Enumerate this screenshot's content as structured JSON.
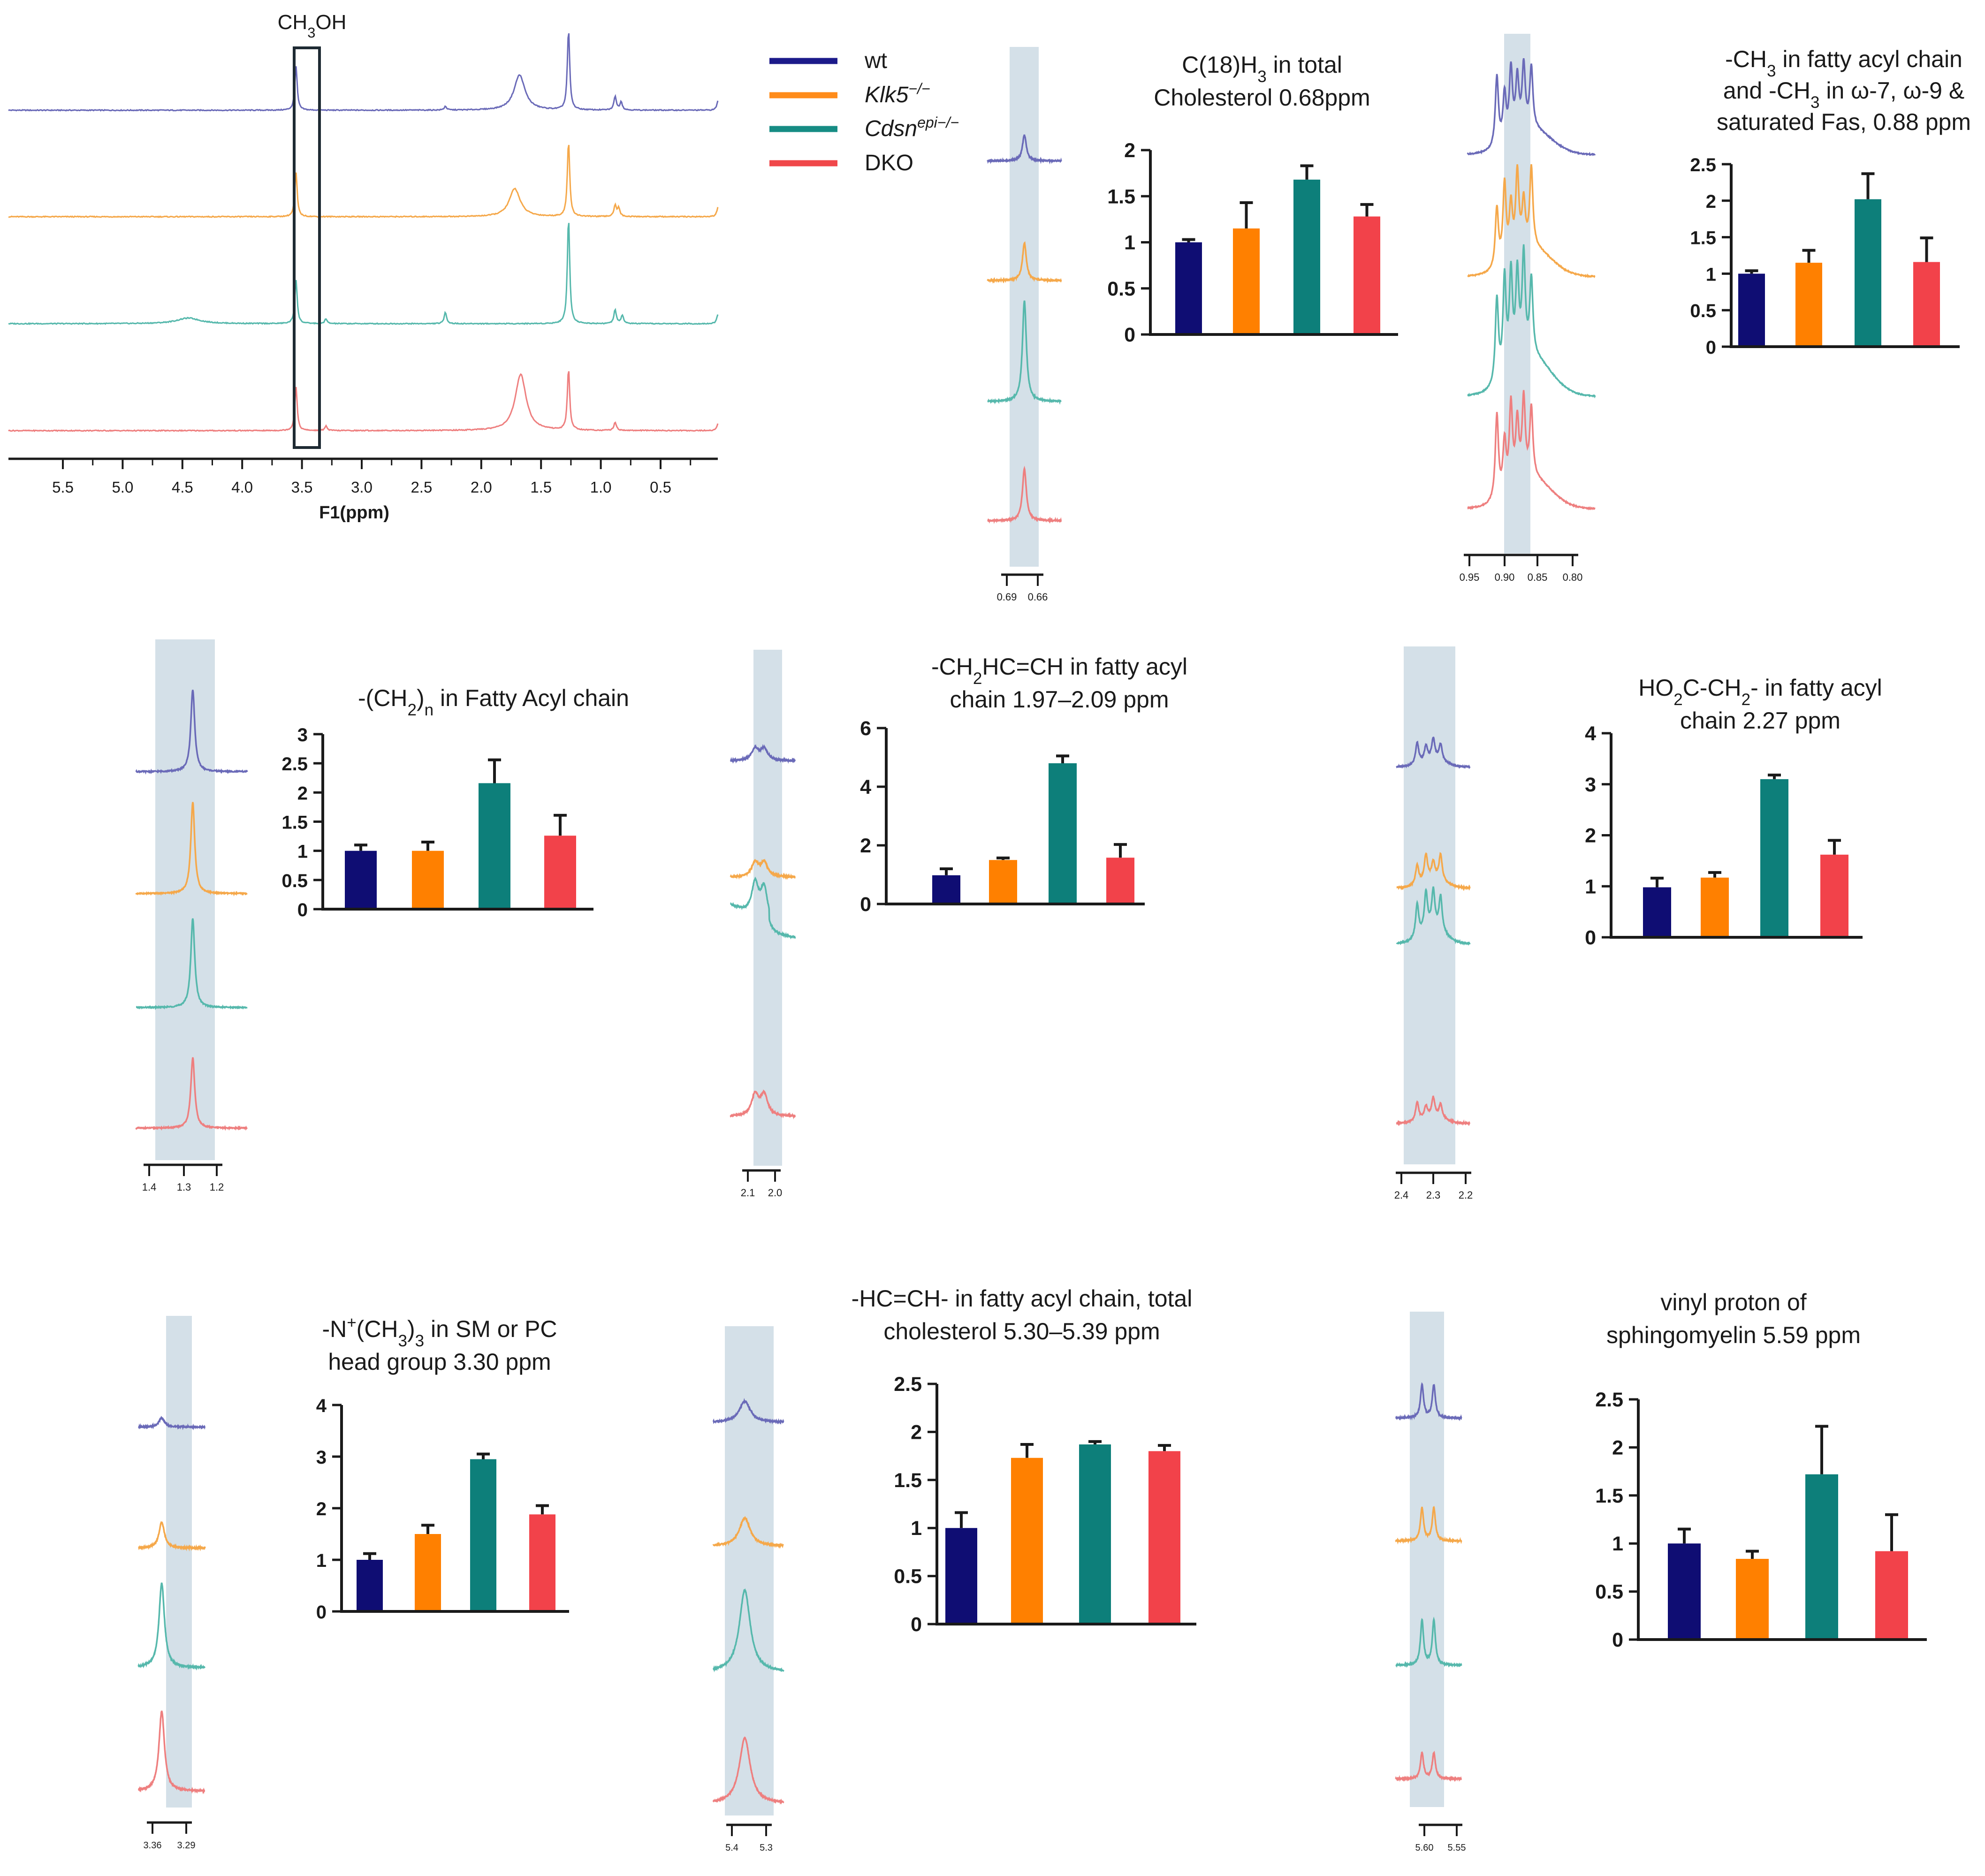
{
  "legend": [
    {
      "label": "wt",
      "color": "#1c1a8a"
    },
    {
      "label": "Klk5",
      "sup": "−/−",
      "italic": true,
      "color": "#ff8c1a"
    },
    {
      "label": "Cdsn",
      "sup": "epi−/−",
      "italic": true,
      "color": "#168c84"
    },
    {
      "label": "DKO",
      "color": "#f0474a"
    }
  ],
  "spectrum_colors": [
    "#6a6ab8",
    "#f5a84a",
    "#56b8ac",
    "#ee7f7f"
  ],
  "main_spectrum": {
    "box_label": "CH3OH",
    "axis_label": "F1(ppm)",
    "ticks": [
      "5.5",
      "5.0",
      "4.5",
      "4.0",
      "3.5",
      "3.0",
      "2.5",
      "2.0",
      "1.5",
      "1.0",
      "0.5"
    ]
  },
  "insets": [
    {
      "id": "c18",
      "ticks": [
        "0.69",
        "0.66"
      ]
    },
    {
      "id": "ch3",
      "ticks": [
        "0.95",
        "0.90",
        "0.85",
        "0.80"
      ]
    },
    {
      "id": "ch2n",
      "ticks": [
        "1.4",
        "1.3",
        "1.2"
      ]
    },
    {
      "id": "allyl",
      "ticks": [
        "2.1",
        "2.0"
      ]
    },
    {
      "id": "ho2c",
      "ticks": [
        "2.4",
        "2.3",
        "2.2"
      ]
    },
    {
      "id": "nch3",
      "ticks": [
        "3.36",
        "3.29"
      ]
    },
    {
      "id": "hcch",
      "ticks": [
        "5.4",
        "5.3"
      ]
    },
    {
      "id": "vinyl",
      "ticks": [
        "5.60",
        "5.55"
      ]
    }
  ],
  "chart_data": [
    {
      "type": "bar",
      "id": "c18",
      "title_lines": [
        "C(18)H3 in total",
        "Cholesterol 0.68ppm"
      ],
      "categories": [
        "wt",
        "Klk5−/−",
        "Cdsnepi−/−",
        "DKO"
      ],
      "values": [
        1.0,
        1.15,
        1.68,
        1.28
      ],
      "errors": [
        0.03,
        0.28,
        0.15,
        0.13
      ],
      "ylim": [
        0,
        2
      ],
      "yticks": [
        "0",
        "0.5",
        "1",
        "1.5",
        "2"
      ]
    },
    {
      "type": "bar",
      "id": "ch3",
      "title_lines": [
        "-CH3 in fatty acyl chain",
        "and -CH3 in ω-7, ω-9 &",
        "saturated Fas, 0.88 ppm"
      ],
      "categories": [
        "wt",
        "Klk5−/−",
        "Cdsnepi−/−",
        "DKO"
      ],
      "values": [
        1.0,
        1.15,
        2.02,
        1.16
      ],
      "errors": [
        0.04,
        0.17,
        0.35,
        0.33
      ],
      "ylim": [
        0,
        2.5
      ],
      "yticks": [
        "0",
        "0.5",
        "1",
        "1.5",
        "2",
        "2.5"
      ]
    },
    {
      "type": "bar",
      "id": "ch2n",
      "title_lines": [
        "-(CH2)n  in  Fatty  Acyl  chain"
      ],
      "categories": [
        "wt",
        "Klk5−/−",
        "Cdsnepi−/−",
        "DKO"
      ],
      "values": [
        1.0,
        1.0,
        2.16,
        1.26
      ],
      "errors": [
        0.1,
        0.15,
        0.4,
        0.35
      ],
      "ylim": [
        0,
        3
      ],
      "yticks": [
        "0",
        "0.5",
        "1",
        "1.5",
        "2",
        "2.5",
        "3"
      ]
    },
    {
      "type": "bar",
      "id": "allyl",
      "title_lines": [
        "-CH2HC=CH  in fatty acyl",
        "chain 1.97–2.09 ppm"
      ],
      "categories": [
        "wt",
        "Klk5−/−",
        "Cdsnepi−/−",
        "DKO"
      ],
      "values": [
        0.98,
        1.5,
        4.8,
        1.58
      ],
      "errors": [
        0.22,
        0.07,
        0.25,
        0.45
      ],
      "ylim": [
        0,
        6
      ],
      "yticks": [
        "0",
        "2",
        "4",
        "6"
      ]
    },
    {
      "type": "bar",
      "id": "ho2c",
      "title_lines": [
        "HO2C-CH2-   in fatty acyl",
        "chain 2.27 ppm"
      ],
      "categories": [
        "wt",
        "Klk5−/−",
        "Cdsnepi−/−",
        "DKO"
      ],
      "values": [
        0.98,
        1.17,
        3.1,
        1.62
      ],
      "errors": [
        0.18,
        0.1,
        0.08,
        0.28
      ],
      "ylim": [
        0,
        4
      ],
      "yticks": [
        "0",
        "1",
        "2",
        "3",
        "4"
      ]
    },
    {
      "type": "bar",
      "id": "nch3",
      "title_lines": [
        "-N+(CH3)3  in SM or PC",
        "head group 3.30 ppm"
      ],
      "categories": [
        "wt",
        "Klk5−/−",
        "Cdsnepi−/−",
        "DKO"
      ],
      "values": [
        1.0,
        1.5,
        2.95,
        1.88
      ],
      "errors": [
        0.12,
        0.17,
        0.1,
        0.17
      ],
      "ylim": [
        0,
        4
      ],
      "yticks": [
        "0",
        "1",
        "2",
        "3",
        "4"
      ]
    },
    {
      "type": "bar",
      "id": "hcch",
      "title_lines": [
        "-HC=CH- in fatty acyl chain, total",
        "cholesterol 5.30–5.39 ppm"
      ],
      "categories": [
        "wt",
        "Klk5−/−",
        "Cdsnepi−/−",
        "DKO"
      ],
      "values": [
        1.0,
        1.73,
        1.87,
        1.8
      ],
      "errors": [
        0.16,
        0.14,
        0.03,
        0.06
      ],
      "ylim": [
        0,
        2.5
      ],
      "yticks": [
        "0",
        "0.5",
        "1",
        "1.5",
        "2",
        "2.5"
      ]
    },
    {
      "type": "bar",
      "id": "vinyl",
      "title_lines": [
        "vinyl proton of",
        "sphingomyelin 5.59 ppm"
      ],
      "categories": [
        "wt",
        "Klk5−/−",
        "Cdsnepi−/−",
        "DKO"
      ],
      "values": [
        1.0,
        0.84,
        1.72,
        0.92
      ],
      "errors": [
        0.15,
        0.08,
        0.5,
        0.38
      ],
      "ylim": [
        0,
        2.5
      ],
      "yticks": [
        "0",
        "0.5",
        "1",
        "1.5",
        "2",
        "2.5"
      ]
    }
  ]
}
